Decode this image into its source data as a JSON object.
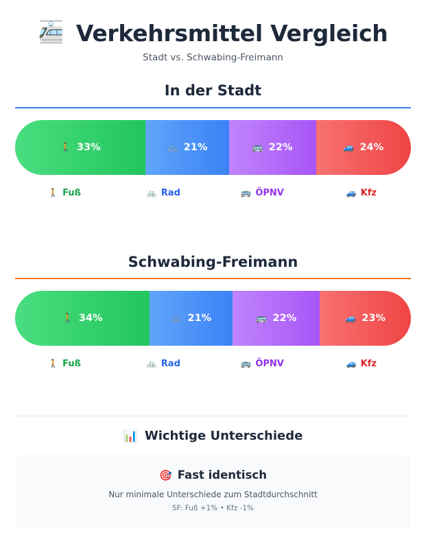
{
  "header": {
    "icon": "🚈",
    "title": "Verkehrsmittel Vergleich",
    "subtitle": "Stadt vs. Schwabing-Freimann"
  },
  "modes": [
    {
      "key": "fuss",
      "label": "Fuß",
      "emoji": "🚶",
      "icon": "pedestrian-icon",
      "color": "#22c55e",
      "grad_from": "#4ade80",
      "grad_to": "#22c55e",
      "text_color": "#16a34a"
    },
    {
      "key": "rad",
      "label": "Rad",
      "emoji": "🚲",
      "icon": "bicycle-icon",
      "color": "#3b82f6",
      "grad_from": "#60a5fa",
      "grad_to": "#3b82f6",
      "text_color": "#2563eb"
    },
    {
      "key": "oepnv",
      "label": "ÖPNV",
      "emoji": "🚌",
      "icon": "bus-icon",
      "color": "#a855f7",
      "grad_from": "#c084fc",
      "grad_to": "#a855f7",
      "text_color": "#9333ea"
    },
    {
      "key": "kfz",
      "label": "Kfz",
      "emoji": "🚙",
      "icon": "car-icon",
      "color": "#ef4444",
      "grad_from": "#f87171",
      "grad_to": "#ef4444",
      "text_color": "#dc2626"
    }
  ],
  "sections": [
    {
      "title": "In der Stadt",
      "accent": "#3b82f6",
      "values_label": [
        "33%",
        "21%",
        "22%",
        "24%"
      ]
    },
    {
      "title": "Schwabing-Freimann",
      "accent": "#f97316",
      "values_label": [
        "34%",
        "21%",
        "22%",
        "23%"
      ]
    }
  ],
  "chart_data": [
    {
      "type": "bar",
      "stacked": true,
      "orientation": "horizontal",
      "title": "In der Stadt",
      "categories": [
        "Fuß",
        "Rad",
        "ÖPNV",
        "Kfz"
      ],
      "values": [
        33,
        21,
        22,
        24
      ],
      "unit": "%",
      "legend": "bottom"
    },
    {
      "type": "bar",
      "stacked": true,
      "orientation": "horizontal",
      "title": "Schwabing-Freimann",
      "categories": [
        "Fuß",
        "Rad",
        "ÖPNV",
        "Kfz"
      ],
      "values": [
        34,
        21,
        22,
        23
      ],
      "unit": "%",
      "legend": "bottom"
    }
  ],
  "differences": {
    "icon": "📊",
    "title": "Wichtige Unterschiede",
    "card": {
      "icon": "🎯",
      "title": "Fast identisch",
      "description": "Nur minimale Unterschiede zum Stadtdurchschnitt",
      "detail": "SF: Fuß +1% • Kfz -1%"
    }
  }
}
